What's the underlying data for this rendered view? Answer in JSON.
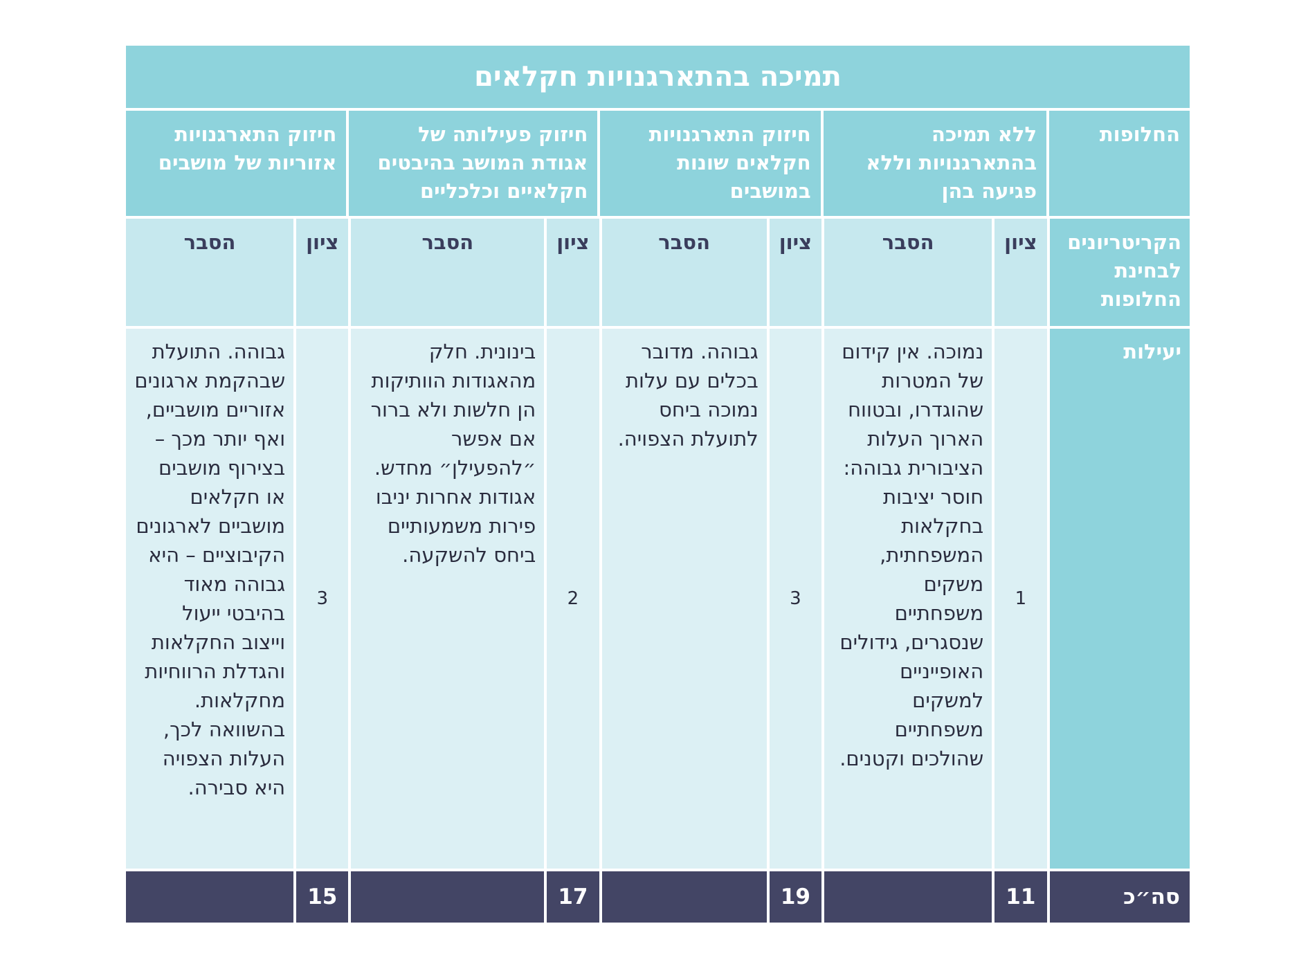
{
  "title": "תמיכה בהתארגנויות חקלאים",
  "alternatives_label": "החלופות",
  "alternatives": [
    "ללא תמיכה בהתארגנויות וללא פגיעה בהן",
    "חיזוק התארגנויות חקלאים שונות במושבים",
    "חיזוק פעילותה של אגודת המושב בהיבטים חקלאיים וכלכליים",
    "חיזוק התארגנויות אזוריות של מושבים"
  ],
  "criteria_label": "הקריטריונים לבחינת החלופות",
  "score_header": "ציון",
  "explanation_header": "הסבר",
  "criterion": {
    "name": "יעילות",
    "scores": [
      "1",
      "3",
      "2",
      "3"
    ],
    "explanations": [
      "נמוכה. אין קידום של המטרות שהוגדרו, ובטווח הארוך העלות הציבורית גבוהה: חוסר יציבות בחקלאות המשפחתית, משקים משפחתיים שנסגרים, גידולים האופייניים למשקים משפחתיים שהולכים וקטנים.",
      "גבוהה. מדובר בכלים עם עלות נמוכה ביחס לתועלת הצפויה.",
      "בינונית. חלק מהאגודות הוותיקות הן חלשות ולא ברור אם אפשר ״להפעילן״ מחדש. אגודות אחרות יניבו פירות משמעותיים ביחס להשקעה.",
      "גבוהה. התועלת שבהקמת ארגונים אזוריים מושביים, ואף יותר מכך – בצירוף מושבים או חקלאים מושביים לארגונים הקיבוציים – היא גבוהה מאוד בהיבטי ייעול וייצוב החקלאות והגדלת הרווחיות מחקלאות. בהשוואה לכך, העלות הצפויה היא סבירה."
    ]
  },
  "total": {
    "label": "סה״כ",
    "scores": [
      "11",
      "19",
      "17",
      "15"
    ]
  },
  "colors": {
    "header_teal": "#8ed3dc",
    "subheader_light": "#c6e8ee",
    "body_light": "#dcf0f4",
    "total_navy": "#434565"
  }
}
